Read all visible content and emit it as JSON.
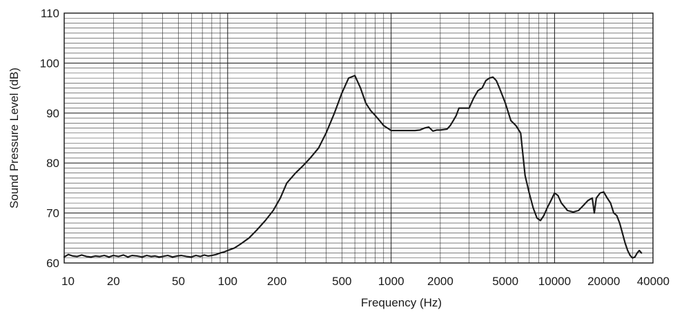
{
  "chart_data": {
    "type": "line",
    "title": "",
    "xlabel": "Frequency (Hz)",
    "ylabel": "Sound Pressure Level (dB)",
    "x_scale": "log",
    "xlim": [
      10,
      40000
    ],
    "ylim": [
      60,
      110
    ],
    "grid": true,
    "legend": "none",
    "line_color": "#1a1a1a",
    "grid_color": "#2a2a2a",
    "x_ticks": [
      10,
      20,
      50,
      100,
      200,
      500,
      1000,
      2000,
      5000,
      10000,
      20000,
      40000
    ],
    "x_tick_labels": [
      "10",
      "20",
      "50",
      "100",
      "200",
      "500",
      "1000",
      "2000",
      "5000",
      "10000",
      "20000",
      "40000"
    ],
    "y_ticks": [
      60,
      70,
      80,
      90,
      100,
      110
    ],
    "y_tick_labels": [
      "60",
      "70",
      "80",
      "90",
      "100",
      "110"
    ],
    "series": [
      {
        "x": [
          10,
          10.6,
          11.3,
          12,
          12.8,
          13.7,
          14.6,
          15.5,
          16.5,
          17.6,
          18.8,
          20,
          21.5,
          23,
          24.5,
          26,
          28,
          30,
          32,
          34,
          36,
          38,
          40,
          43,
          46,
          49,
          52,
          56,
          60,
          64,
          68,
          72,
          76,
          80,
          85,
          90,
          95,
          100,
          110,
          120,
          135,
          150,
          170,
          190,
          210,
          230,
          260,
          290,
          320,
          360,
          400,
          450,
          500,
          550,
          600,
          650,
          700,
          750,
          800,
          850,
          900,
          950,
          1000,
          1100,
          1200,
          1300,
          1400,
          1500,
          1600,
          1700,
          1800,
          1900,
          2000,
          2100,
          2200,
          2300,
          2400,
          2500,
          2600,
          2800,
          3000,
          3200,
          3400,
          3600,
          3800,
          4000,
          4200,
          4400,
          4600,
          4800,
          5000,
          5400,
          5800,
          6200,
          6600,
          7000,
          7400,
          7800,
          8200,
          8600,
          9000,
          9500,
          10000,
          10500,
          11000,
          12000,
          13000,
          14000,
          15000,
          16000,
          17000,
          17500,
          18000,
          19000,
          20000,
          21000,
          22000,
          23000,
          24000,
          25000,
          26000,
          27000,
          28000,
          29000,
          30000,
          31000,
          32000,
          33000,
          34000
        ],
        "values": [
          61.2,
          61.7,
          61.4,
          61.3,
          61.6,
          61.3,
          61.2,
          61.4,
          61.3,
          61.5,
          61.2,
          61.5,
          61.3,
          61.6,
          61.2,
          61.5,
          61.4,
          61.2,
          61.5,
          61.3,
          61.4,
          61.2,
          61.3,
          61.5,
          61.2,
          61.4,
          61.5,
          61.3,
          61.2,
          61.5,
          61.3,
          61.6,
          61.4,
          61.5,
          61.7,
          62.0,
          62.2,
          62.5,
          63.0,
          63.8,
          65.0,
          66.5,
          68.5,
          70.5,
          73.0,
          76.0,
          78.0,
          79.5,
          81.0,
          83.0,
          86.0,
          90.0,
          94.0,
          97.0,
          97.5,
          95.0,
          92.0,
          90.5,
          89.5,
          88.5,
          87.5,
          87.0,
          86.5,
          86.5,
          86.5,
          86.5,
          86.5,
          86.6,
          87.0,
          87.2,
          86.4,
          86.6,
          86.6,
          86.7,
          86.8,
          87.5,
          88.5,
          89.5,
          91.0,
          91.0,
          91.0,
          93.0,
          94.5,
          95.0,
          96.5,
          97.0,
          97.2,
          96.5,
          95.0,
          93.5,
          92.0,
          88.5,
          87.5,
          86.0,
          77.5,
          74.0,
          71.0,
          69.0,
          68.5,
          69.5,
          71.0,
          72.5,
          74.0,
          73.5,
          72.0,
          70.5,
          70.2,
          70.5,
          71.5,
          72.5,
          73.0,
          70.0,
          73.0,
          74.0,
          74.2,
          73.0,
          72.0,
          70.0,
          69.5,
          68.0,
          66.0,
          64.0,
          62.5,
          61.5,
          61.0,
          61.2,
          62.0,
          62.5,
          62.0
        ]
      }
    ]
  }
}
